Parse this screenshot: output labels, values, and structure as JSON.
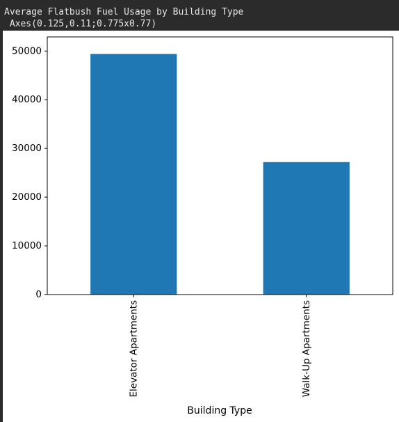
{
  "output": {
    "line1": "Average Flatbush Fuel Usage by Building Type",
    "line2": " Axes(0.125,0.11;0.775x0.77)"
  },
  "chart_data": {
    "type": "bar",
    "categories": [
      "Elevator Apartments",
      "Walk-Up Apartments"
    ],
    "values": [
      49400,
      27200
    ],
    "xlabel": "Building Type",
    "ylabel": "",
    "ylim": [
      0,
      52900
    ],
    "yticks": [
      0,
      10000,
      20000,
      30000,
      40000,
      50000
    ],
    "ytick_labels": [
      "0",
      "10000",
      "20000",
      "30000",
      "40000",
      "50000"
    ],
    "bar_color": "#1f77b4",
    "grid": false,
    "legend": "none"
  }
}
